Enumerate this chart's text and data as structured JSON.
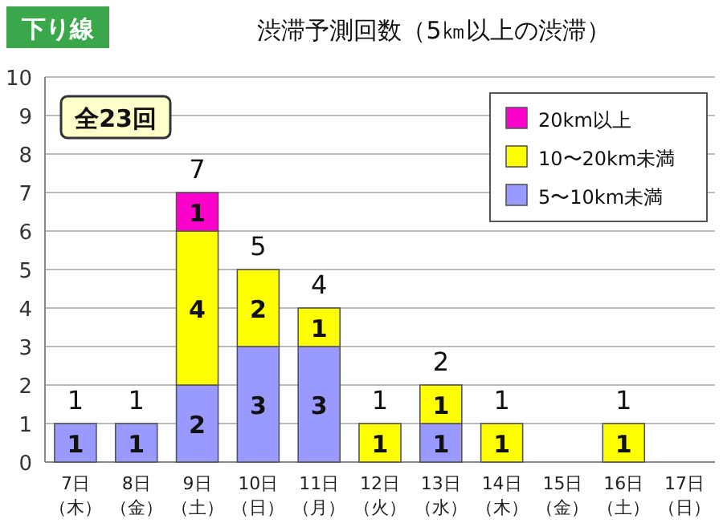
{
  "chart_data": {
    "type": "bar",
    "stacked": true,
    "title": "渋滞予測回数（5㎞以上の渋滞）",
    "categories": [
      "7日（木）",
      "8日（金）",
      "9日（土）",
      "10日（日）",
      "11日（月）",
      "12日（火）",
      "13日（水）",
      "14日（木）",
      "15日（金）",
      "16日（土）",
      "17日（日）"
    ],
    "series": [
      {
        "name": "5〜10km未満",
        "color": "#9999ff",
        "values": [
          1,
          1,
          2,
          3,
          3,
          null,
          1,
          null,
          null,
          null,
          null
        ]
      },
      {
        "name": "10〜20km未満",
        "color": "#ffff00",
        "values": [
          null,
          null,
          4,
          2,
          1,
          1,
          1,
          1,
          null,
          1,
          null
        ]
      },
      {
        "name": "20km以上",
        "color": "#ff00cc",
        "values": [
          null,
          null,
          1,
          null,
          null,
          null,
          null,
          null,
          null,
          null,
          null
        ]
      }
    ],
    "totals": [
      "1",
      "1",
      "7",
      "5",
      "4",
      "1",
      "2",
      "1",
      null,
      "1",
      null
    ],
    "data_labels": true,
    "ylim": [
      0,
      10
    ],
    "yticks": [
      0,
      1,
      2,
      3,
      4,
      5,
      6,
      7,
      8,
      9,
      10
    ],
    "grid": "y",
    "legend": "top right",
    "annotations": [
      "下り線",
      "全23回"
    ]
  }
}
